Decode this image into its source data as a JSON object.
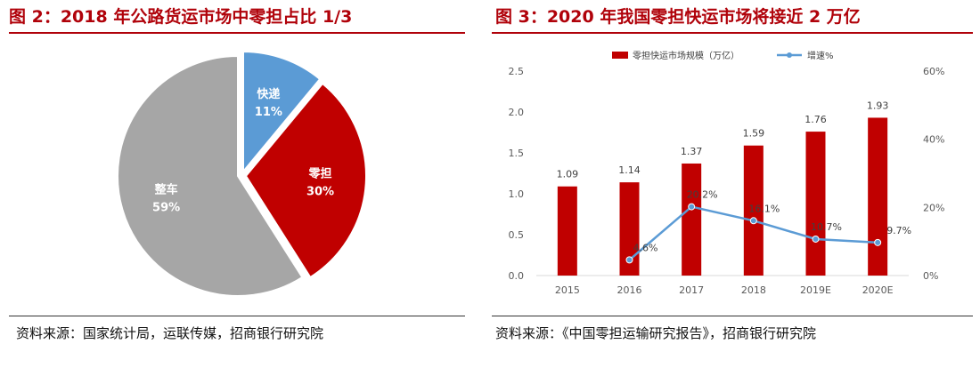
{
  "left": {
    "title": "图 2：2018 年公路货运市场中零担占比 1/3",
    "source": "资料来源：国家统计局，运联传媒，招商银行研究院"
  },
  "right": {
    "title": "图 3：2020 年我国零担快运市场将接近 2 万亿",
    "source": "资料来源：《中国零担运输研究报告》，招商银行研究院"
  },
  "chart_data": [
    {
      "type": "pie",
      "slices": [
        {
          "label": "快递",
          "value": 11,
          "display": "11%",
          "color": "#5b9bd5"
        },
        {
          "label": "零担",
          "value": 30,
          "display": "30%",
          "color": "#c00000"
        },
        {
          "label": "整车",
          "value": 59,
          "display": "59%",
          "color": "#a6a6a6"
        }
      ]
    },
    {
      "type": "bar+line",
      "categories": [
        "2015",
        "2016",
        "2017",
        "2018",
        "2019E",
        "2020E"
      ],
      "legend_position": "top",
      "y_left": {
        "ticks": [
          "0.0",
          "0.5",
          "1.0",
          "1.5",
          "2.0",
          "2.5"
        ],
        "range": [
          0,
          2.5
        ]
      },
      "y_right": {
        "ticks": [
          "0%",
          "20%",
          "40%",
          "60%"
        ],
        "range": [
          0,
          60
        ]
      },
      "series": [
        {
          "name": "零担快运市场规模（万亿）",
          "type": "bar",
          "axis": "left",
          "color": "#c00000",
          "values": [
            1.09,
            1.14,
            1.37,
            1.59,
            1.76,
            1.93
          ],
          "labels": [
            "1.09",
            "1.14",
            "1.37",
            "1.59",
            "1.76",
            "1.93"
          ]
        },
        {
          "name": "增速%",
          "type": "line",
          "axis": "right",
          "color": "#5b9bd5",
          "values": [
            null,
            4.6,
            20.2,
            16.1,
            10.7,
            9.7
          ],
          "labels": [
            "",
            "4.6%",
            "20.2%",
            "16.1%",
            "10.7%",
            "9.7%"
          ]
        }
      ]
    }
  ]
}
